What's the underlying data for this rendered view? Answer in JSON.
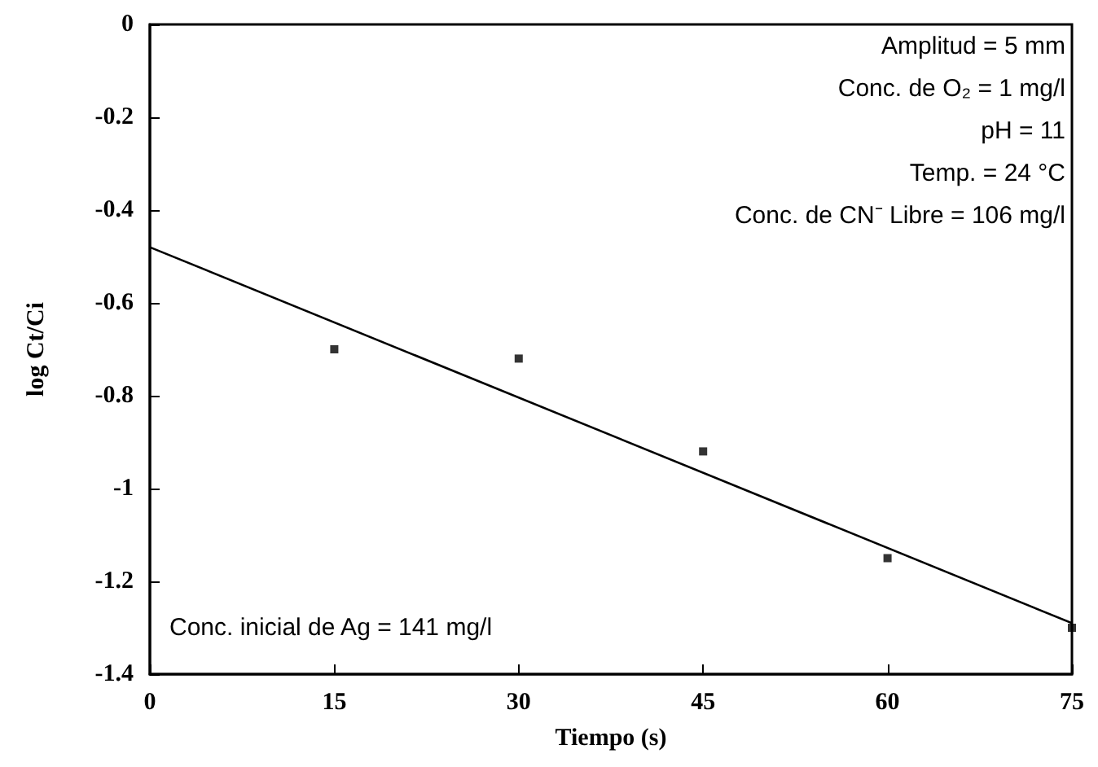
{
  "chart_data": {
    "type": "scatter",
    "xlabel": "Tiempo (s)",
    "ylabel": "log Ct/Ci",
    "xlim": [
      0,
      75
    ],
    "xticks": [
      0,
      15,
      30,
      45,
      60,
      75
    ],
    "ylim": [
      -1.4,
      0
    ],
    "yticks": [
      0,
      -0.2,
      -0.4,
      -0.6,
      -0.8,
      -1,
      -1.2,
      -1.4
    ],
    "grid": false,
    "marker": "square",
    "series": [
      {
        "color": "#000000",
        "x": [
          15,
          30,
          45,
          60,
          75
        ],
        "values": [
          -0.7,
          -0.72,
          -0.92,
          -1.15,
          -1.3
        ]
      },
      {
        "type": "line",
        "color": "#000000",
        "marker": "none",
        "line_style": "solid",
        "x": [
          0,
          75
        ],
        "values": [
          -0.48,
          -1.29
        ]
      }
    ],
    "annotations": [
      "Amplitud = 5 mm",
      "Conc. de O₂ = 1 mg/l",
      "pH = 11",
      "Temp. = 24 °C",
      "Conc. de CN⁻ Libre = 106 mg/l",
      "Conc. inicial de Ag = 141 mg/l"
    ]
  }
}
